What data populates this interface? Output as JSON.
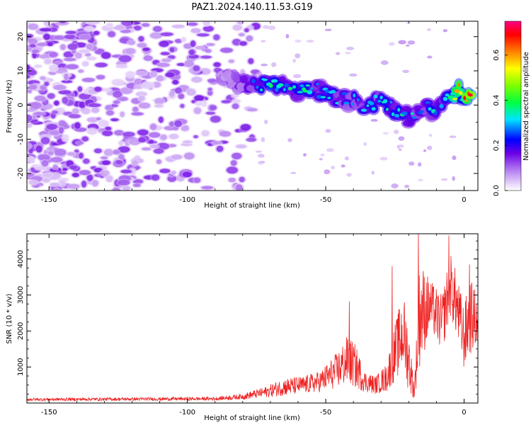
{
  "title": "PAZ1.2024.140.11.53.G19",
  "chart_data": [
    {
      "type": "heatmap",
      "xlabel": "Height of straight line (km)",
      "ylabel": "Frequency (Hz)",
      "xlim": [
        -158,
        5
      ],
      "ylim": [
        -25,
        24.5
      ],
      "xticks": [
        -150,
        -100,
        -50,
        0
      ],
      "yticks": [
        -20,
        -10,
        0,
        10,
        20
      ],
      "colorbar": {
        "label": "Normalized spectral amplitude",
        "range": [
          0,
          0.75
        ],
        "ticks": [
          0.0,
          0.2,
          0.4,
          0.6
        ],
        "colormap": [
          "#ffffff",
          "#b57ef0",
          "#6a00e6",
          "#0000ff",
          "#00e5ff",
          "#00ff40",
          "#7fff00",
          "#ffff00",
          "#ff8000",
          "#ff0000",
          "#ff0080"
        ]
      },
      "noise_region": {
        "x_range": [
          -158,
          -75
        ],
        "freq_range": [
          -25,
          24.5
        ],
        "typical_amplitude": 0.1
      },
      "ridge": [
        {
          "x": -88,
          "freq": 9,
          "amplitude": 0.12
        },
        {
          "x": -80,
          "freq": 6,
          "amplitude": 0.2
        },
        {
          "x": -75,
          "freq": 5,
          "amplitude": 0.3
        },
        {
          "x": -70,
          "freq": 6.5,
          "amplitude": 0.4
        },
        {
          "x": -65,
          "freq": 6,
          "amplitude": 0.33
        },
        {
          "x": -60,
          "freq": 4,
          "amplitude": 0.38
        },
        {
          "x": -55,
          "freq": 5,
          "amplitude": 0.32
        },
        {
          "x": -50,
          "freq": 3.5,
          "amplitude": 0.35
        },
        {
          "x": -45,
          "freq": 2,
          "amplitude": 0.3
        },
        {
          "x": -40,
          "freq": 1,
          "amplitude": 0.28
        },
        {
          "x": -35,
          "freq": 0,
          "amplitude": 0.3
        },
        {
          "x": -30,
          "freq": 1.5,
          "amplitude": 0.33
        },
        {
          "x": -25,
          "freq": -1.5,
          "amplitude": 0.3
        },
        {
          "x": -20,
          "freq": -3.5,
          "amplitude": 0.35
        },
        {
          "x": -15,
          "freq": -1,
          "amplitude": 0.3
        },
        {
          "x": -10,
          "freq": -1.5,
          "amplitude": 0.4
        },
        {
          "x": -5,
          "freq": 2,
          "amplitude": 0.35
        },
        {
          "x": -2,
          "freq": 4.5,
          "amplitude": 0.6
        },
        {
          "x": 3,
          "freq": 0.5,
          "amplitude": 0.72
        }
      ]
    },
    {
      "type": "line",
      "xlabel": "Height of straight line (km)",
      "ylabel": "SNR (10 * v/v)",
      "xlim": [
        -158,
        5
      ],
      "ylim": [
        0,
        4700
      ],
      "xticks": [
        -150,
        -100,
        -50,
        0
      ],
      "yticks": [
        1000,
        2000,
        3000,
        4000
      ],
      "color": "#ee2222",
      "envelope": [
        {
          "x": -158,
          "mean": 100,
          "spread": 40
        },
        {
          "x": -120,
          "mean": 110,
          "spread": 45
        },
        {
          "x": -90,
          "mean": 120,
          "spread": 50
        },
        {
          "x": -80,
          "mean": 180,
          "spread": 80
        },
        {
          "x": -72,
          "mean": 300,
          "spread": 150
        },
        {
          "x": -65,
          "mean": 450,
          "spread": 250
        },
        {
          "x": -58,
          "mean": 500,
          "spread": 250
        },
        {
          "x": -52,
          "mean": 600,
          "spread": 300
        },
        {
          "x": -46,
          "mean": 900,
          "spread": 500
        },
        {
          "x": -42,
          "mean": 1200,
          "spread": 700
        },
        {
          "x": -39,
          "mean": 1000,
          "spread": 600
        },
        {
          "x": -36,
          "mean": 600,
          "spread": 300
        },
        {
          "x": -32,
          "mean": 500,
          "spread": 250
        },
        {
          "x": -28,
          "mean": 700,
          "spread": 400
        },
        {
          "x": -25,
          "mean": 1400,
          "spread": 800
        },
        {
          "x": -22,
          "mean": 2000,
          "spread": 1100
        },
        {
          "x": -20,
          "mean": 1200,
          "spread": 900
        },
        {
          "x": -18,
          "mean": 300,
          "spread": 200
        },
        {
          "x": -16,
          "mean": 2500,
          "spread": 1500
        },
        {
          "x": -12,
          "mean": 2700,
          "spread": 700
        },
        {
          "x": -8,
          "mean": 2200,
          "spread": 800
        },
        {
          "x": -5,
          "mean": 3300,
          "spread": 900
        },
        {
          "x": -3,
          "mean": 2800,
          "spread": 900
        },
        {
          "x": 0,
          "mean": 1800,
          "spread": 900
        },
        {
          "x": 2,
          "mean": 2400,
          "spread": 1100
        },
        {
          "x": 5,
          "mean": 2300,
          "spread": 700
        }
      ],
      "peaks": [
        {
          "x": -16.5,
          "y": 4750
        },
        {
          "x": -5.5,
          "y": 4650
        },
        {
          "x": 2,
          "y": 3850
        },
        {
          "x": -26,
          "y": 3800
        },
        {
          "x": -41.5,
          "y": 2820
        }
      ]
    }
  ]
}
